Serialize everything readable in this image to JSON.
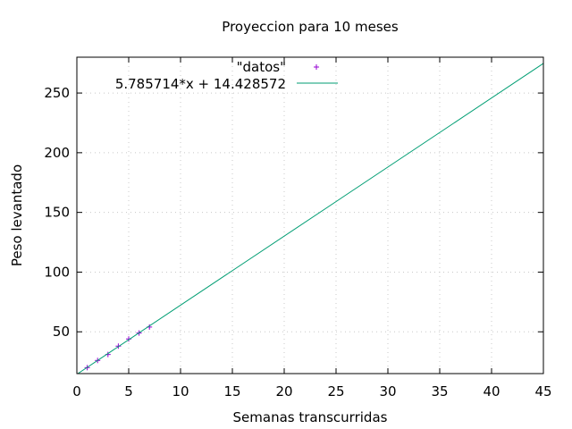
{
  "chart_data": {
    "type": "scatter",
    "title": "Proyeccion para 10 meses",
    "xlabel": "Semanas transcurridas",
    "ylabel": "Peso levantado",
    "xlim": [
      0,
      45
    ],
    "ylim": [
      15,
      280
    ],
    "xticks": [
      0,
      5,
      10,
      15,
      20,
      25,
      30,
      35,
      40,
      45
    ],
    "yticks": [
      50,
      100,
      150,
      200,
      250
    ],
    "grid": true,
    "legend_position": "top-left",
    "series": [
      {
        "name": "\"datos\"",
        "kind": "points",
        "marker": "+",
        "color": "#9400d3",
        "x": [
          1,
          2,
          3,
          4,
          5,
          6,
          7
        ],
        "y": [
          20,
          26,
          31,
          38,
          44,
          49,
          54
        ]
      },
      {
        "name": "5.785714*x + 14.428572",
        "kind": "function",
        "slope": 5.785714,
        "intercept": 14.428572,
        "color": "#009e73"
      }
    ]
  }
}
